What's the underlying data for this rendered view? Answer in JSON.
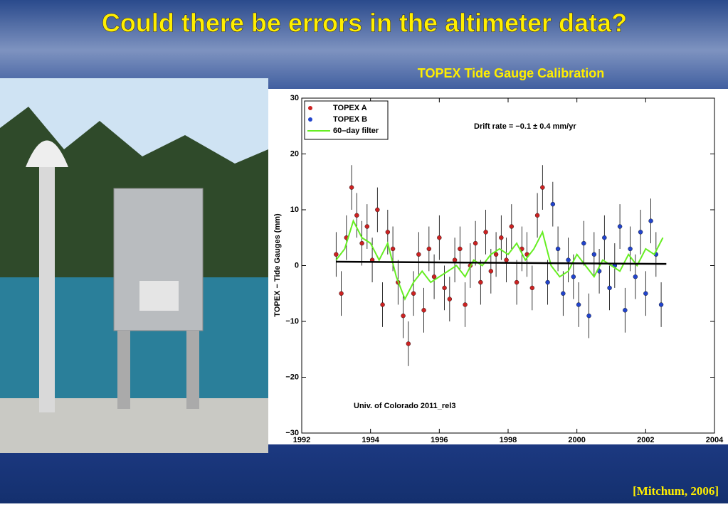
{
  "title": "Could there be errors in the altimeter data?",
  "citation": "[Mitchum, 2006]",
  "chart_data": {
    "type": "scatter",
    "title": "TOPEX Tide Gauge Calibration",
    "y_label": "TOPEX − Tide Gauges (mm)",
    "annotations": [
      "Drift rate = −0.1 ± 0.4 mm/yr",
      "Univ. of Colorado 2011_rel3"
    ],
    "xlim": [
      1992,
      2004
    ],
    "xticks": [
      1992,
      1994,
      1996,
      1998,
      2000,
      2002,
      2004
    ],
    "ylim": [
      -30,
      30
    ],
    "yticks": [
      {
        "value": -30,
        "label": "−30"
      },
      {
        "value": -20,
        "label": "−20"
      },
      {
        "value": -10,
        "label": "−10"
      },
      0,
      10,
      20,
      30
    ],
    "legend": "top-left",
    "series": [
      {
        "name": "TOPEX A",
        "color": "#cc2222",
        "error": 4,
        "x": [
          1993.0,
          1993.15,
          1993.3,
          1993.45,
          1993.6,
          1993.75,
          1993.9,
          1994.05,
          1994.2,
          1994.35,
          1994.5,
          1994.65,
          1994.8,
          1994.95,
          1995.1,
          1995.25,
          1995.4,
          1995.55,
          1995.7,
          1995.85,
          1996.0,
          1996.15,
          1996.3,
          1996.45,
          1996.6,
          1996.75,
          1996.9,
          1997.05,
          1997.2,
          1997.35,
          1997.5,
          1997.65,
          1997.8,
          1997.95,
          1998.1,
          1998.25,
          1998.4,
          1998.55,
          1998.7,
          1998.85,
          1999.0
        ],
        "values": [
          2,
          -5,
          5,
          14,
          9,
          4,
          7,
          1,
          10,
          -7,
          6,
          3,
          -3,
          -9,
          -14,
          -5,
          2,
          -8,
          3,
          -2,
          5,
          -4,
          -6,
          1,
          3,
          -7,
          0,
          4,
          -3,
          6,
          -1,
          2,
          5,
          1,
          7,
          -3,
          3,
          2,
          -4,
          9,
          14
        ]
      },
      {
        "name": "TOPEX B",
        "color": "#2244cc",
        "error": 4,
        "x": [
          1999.15,
          1999.3,
          1999.45,
          1999.6,
          1999.75,
          1999.9,
          2000.05,
          2000.2,
          2000.35,
          2000.5,
          2000.65,
          2000.8,
          2000.95,
          2001.1,
          2001.25,
          2001.4,
          2001.55,
          2001.7,
          2001.85,
          2002.0,
          2002.15,
          2002.3,
          2002.45
        ],
        "values": [
          -3,
          11,
          3,
          -5,
          1,
          -2,
          -7,
          4,
          -9,
          2,
          -1,
          5,
          -4,
          0,
          7,
          -8,
          3,
          -2,
          6,
          -5,
          8,
          2,
          -7
        ]
      },
      {
        "name": "60–day filter",
        "color": "#66ee22",
        "type": "line",
        "x": [
          1993,
          1993.25,
          1993.5,
          1993.75,
          1994,
          1994.25,
          1994.5,
          1994.75,
          1995,
          1995.25,
          1995.5,
          1995.75,
          1996,
          1996.25,
          1996.5,
          1996.75,
          1997,
          1997.25,
          1997.5,
          1997.75,
          1998,
          1998.25,
          1998.5,
          1998.75,
          1999,
          1999.25,
          1999.5,
          1999.75,
          2000,
          2000.25,
          2000.5,
          2000.75,
          2001,
          2001.25,
          2001.5,
          2001.75,
          2002,
          2002.25,
          2002.5
        ],
        "values": [
          1,
          3,
          8,
          5,
          4,
          1,
          4,
          -2,
          -6,
          -3,
          -1,
          -3,
          -2,
          -1,
          0,
          -2,
          1,
          0,
          2,
          3,
          2,
          4,
          1,
          3,
          6,
          0,
          -2,
          -1,
          2,
          0,
          -2,
          1,
          0,
          -1,
          2,
          0,
          3,
          2,
          5
        ]
      },
      {
        "color": "#000000",
        "type": "line",
        "x": [
          1993,
          2002.6
        ],
        "values": [
          0.7,
          0.3
        ]
      }
    ]
  }
}
